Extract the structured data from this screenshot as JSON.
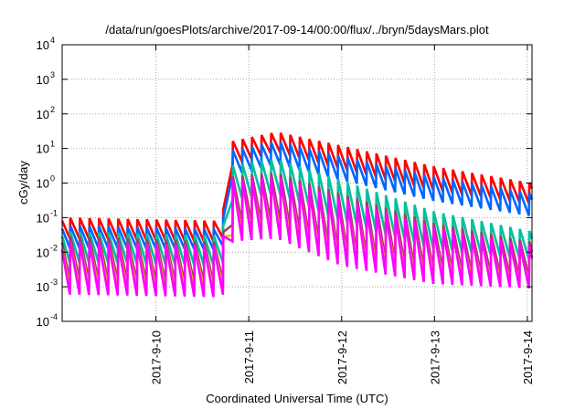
{
  "chart_data": {
    "type": "line",
    "title": "/data/run/goesPlots/archive/2017-09-14/00:00/flux/../bryn/5daysMars.plot",
    "xlabel": "Coordinated Universal Time (UTC)",
    "ylabel": "cGy/day",
    "yscale": "log",
    "ylim": [
      0.0001,
      10000
    ],
    "xlim_days_since_2017_09_09": [
      -0.01,
      5.05
    ],
    "grid": true,
    "x_ticks": [
      {
        "day": 1,
        "label": "2017-9-10"
      },
      {
        "day": 2,
        "label": "2017-9-11"
      },
      {
        "day": 3,
        "label": "2017-9-12"
      },
      {
        "day": 4,
        "label": "2017-9-13"
      },
      {
        "day": 5,
        "label": "2017-9-14"
      }
    ],
    "y_ticks": [
      {
        "exp": "4"
      },
      {
        "exp": "3"
      },
      {
        "exp": "2"
      },
      {
        "exp": "1"
      },
      {
        "exp": "0"
      },
      {
        "exp": "-1"
      },
      {
        "exp": "-2"
      },
      {
        "exp": "-3"
      },
      {
        "exp": "-4"
      }
    ],
    "sawtooth": {
      "first_peak_day": 0.078,
      "period_days": 0.103
    },
    "envelope_knots_days": [
      0,
      1.72,
      1.76,
      2.3,
      3.0,
      4.0,
      5.05
    ],
    "series": [
      {
        "color": "#ff0000",
        "peak": [
          0.1,
          0.08,
          15,
          30,
          12,
          3,
          1
        ],
        "trough": [
          0.025,
          0.02,
          3,
          8,
          2.5,
          0.6,
          0.25
        ]
      },
      {
        "color": "#0066ff",
        "peak": [
          0.06,
          0.045,
          8,
          16,
          6,
          1.5,
          0.5
        ],
        "trough": [
          0.013,
          0.012,
          1.5,
          3.5,
          1.2,
          0.3,
          0.11
        ]
      },
      {
        "color": "#00c0a0",
        "peak": [
          0.04,
          0.03,
          3,
          5,
          1.2,
          0.15,
          0.04
        ],
        "trough": [
          0.005,
          0.004,
          0.3,
          0.5,
          0.08,
          0.012,
          0.006
        ]
      },
      {
        "color": "#a04060",
        "peak": [
          0.03,
          0.02,
          1.5,
          2,
          0.5,
          0.07,
          0.02
        ],
        "trough": [
          0.0015,
          0.0012,
          0.06,
          0.08,
          0.01,
          0.003,
          0.0018
        ]
      },
      {
        "color": "#e0c000",
        "peak": [
          0.02,
          0.015,
          1.0,
          1.3,
          0.3,
          0.04,
          0.012
        ],
        "trough": [
          0.0009,
          0.0008,
          0.03,
          0.04,
          0.006,
          0.002,
          0.0012
        ]
      },
      {
        "color": "#ff00ff",
        "peak": [
          0.02,
          0.015,
          1.2,
          1.5,
          0.35,
          0.05,
          0.015
        ],
        "trough": [
          0.0006,
          0.0005,
          0.02,
          0.025,
          0.004,
          0.0012,
          0.0009
        ]
      }
    ]
  }
}
